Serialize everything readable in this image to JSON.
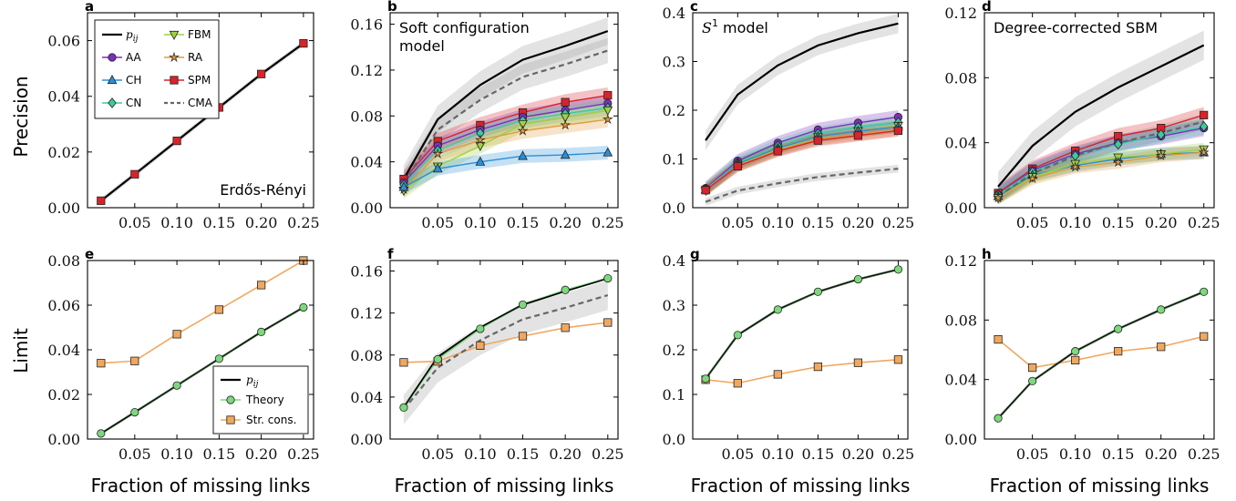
{
  "figure": {
    "ylabel_top": "Precision",
    "ylabel_bottom": "Limit",
    "xlabel": "Fraction of missing links"
  },
  "colors": {
    "pij": "#000000",
    "AA": "#7b2fbf",
    "CH": "#2b8fd6",
    "CN": "#3ec9a0",
    "FBM": "#9fd145",
    "RA": "#e39b3c",
    "SPM": "#d8232a",
    "CMA": "#666666",
    "Theory": "#7dd87d",
    "StrCons": "#f0a860"
  },
  "legend_top": [
    {
      "key": "pij",
      "label": "p",
      "sub": "ij"
    },
    {
      "key": "FBM",
      "label": "FBM"
    },
    {
      "key": "AA",
      "label": "AA"
    },
    {
      "key": "RA",
      "label": "RA"
    },
    {
      "key": "CH",
      "label": "CH"
    },
    {
      "key": "SPM",
      "label": "SPM"
    },
    {
      "key": "CN",
      "label": "CN"
    },
    {
      "key": "CMA",
      "label": "CMA"
    }
  ],
  "legend_bottom": [
    {
      "key": "pij",
      "label": "p",
      "sub": "ij"
    },
    {
      "key": "Theory",
      "label": "Theory"
    },
    {
      "key": "StrCons",
      "label": "Str. cons."
    }
  ],
  "chart_data": [
    {
      "panel": "a",
      "type": "line",
      "annotation": "Erdős-Rényi",
      "x": [
        0.01,
        0.05,
        0.1,
        0.15,
        0.2,
        0.25
      ],
      "xticks": [
        "0.05",
        "0.10",
        "0.15",
        "0.20",
        "0.25"
      ],
      "xticks_shown": [
        "0.05",
        "0.1",
        "0.15",
        "0.2",
        "0.25"
      ],
      "ylim": [
        0,
        0.07
      ],
      "yticks": [
        "0.00",
        "0.02",
        "0.04",
        "0.06"
      ],
      "series": [
        {
          "name": "pij",
          "values": [
            0.0025,
            0.012,
            0.024,
            0.036,
            0.048,
            0.059
          ],
          "band": 0.001
        },
        {
          "name": "SPM",
          "values": [
            0.0025,
            0.012,
            0.024,
            0.036,
            0.048,
            0.059
          ]
        },
        {
          "name": "CMA",
          "values": [
            0.0025,
            0.012,
            0.024,
            0.036,
            0.048,
            0.059
          ]
        }
      ]
    },
    {
      "panel": "b",
      "type": "line",
      "annotation": "Soft configuration model",
      "x": [
        0.01,
        0.05,
        0.1,
        0.15,
        0.2,
        0.25
      ],
      "ylim": [
        0,
        0.17
      ],
      "yticks": [
        "0.00",
        "0.04",
        "0.08",
        "0.12",
        "0.16"
      ],
      "series": [
        {
          "name": "pij",
          "values": [
            0.025,
            0.077,
            0.107,
            0.129,
            0.141,
            0.154
          ],
          "band": 0.012
        },
        {
          "name": "CMA",
          "values": [
            0.022,
            0.068,
            0.094,
            0.114,
            0.125,
            0.137
          ],
          "band": 0.011
        },
        {
          "name": "SPM",
          "values": [
            0.025,
            0.058,
            0.072,
            0.083,
            0.092,
            0.098
          ],
          "band": 0.007
        },
        {
          "name": "AA",
          "values": [
            0.022,
            0.054,
            0.068,
            0.079,
            0.085,
            0.091
          ],
          "band": 0.007
        },
        {
          "name": "CN",
          "values": [
            0.02,
            0.05,
            0.065,
            0.076,
            0.082,
            0.087
          ],
          "band": 0.007
        },
        {
          "name": "FBM",
          "values": [
            0.015,
            0.036,
            0.054,
            0.073,
            0.079,
            0.085
          ],
          "band": 0.007
        },
        {
          "name": "RA",
          "values": [
            0.016,
            0.047,
            0.059,
            0.067,
            0.072,
            0.077
          ],
          "band": 0.007
        },
        {
          "name": "CH",
          "values": [
            0.018,
            0.034,
            0.04,
            0.045,
            0.046,
            0.048
          ],
          "band": 0.006
        }
      ]
    },
    {
      "panel": "c",
      "type": "line",
      "annotation": "model",
      "annotation_math": "S",
      "annotation_sup": "1",
      "x": [
        0.01,
        0.05,
        0.1,
        0.15,
        0.2,
        0.25
      ],
      "ylim": [
        0,
        0.4
      ],
      "yticks": [
        "0.0",
        "0.1",
        "0.2",
        "0.3",
        "0.4"
      ],
      "series": [
        {
          "name": "pij",
          "values": [
            0.138,
            0.232,
            0.292,
            0.333,
            0.358,
            0.378
          ],
          "band": 0.02
        },
        {
          "name": "AA",
          "values": [
            0.04,
            0.096,
            0.133,
            0.16,
            0.174,
            0.186
          ],
          "band": 0.014
        },
        {
          "name": "CN",
          "values": [
            0.038,
            0.092,
            0.127,
            0.152,
            0.165,
            0.175
          ],
          "band": 0.014
        },
        {
          "name": "FBM",
          "values": [
            0.036,
            0.088,
            0.12,
            0.145,
            0.157,
            0.168
          ],
          "band": 0.014
        },
        {
          "name": "CH",
          "values": [
            0.037,
            0.09,
            0.122,
            0.146,
            0.157,
            0.166
          ],
          "band": 0.012
        },
        {
          "name": "RA",
          "values": [
            0.037,
            0.087,
            0.118,
            0.14,
            0.15,
            0.16
          ],
          "band": 0.012
        },
        {
          "name": "SPM",
          "values": [
            0.036,
            0.085,
            0.116,
            0.138,
            0.148,
            0.158
          ],
          "band": 0.012
        },
        {
          "name": "CMA",
          "values": [
            0.012,
            0.035,
            0.05,
            0.063,
            0.072,
            0.08
          ],
          "band": 0.008
        }
      ]
    },
    {
      "panel": "d",
      "type": "line",
      "annotation": "Degree-corrected SBM",
      "x": [
        0.01,
        0.05,
        0.1,
        0.15,
        0.2,
        0.25
      ],
      "ylim": [
        0,
        0.12
      ],
      "yticks": [
        "0.00",
        "0.04",
        "0.08",
        "0.12"
      ],
      "series": [
        {
          "name": "pij",
          "values": [
            0.013,
            0.038,
            0.059,
            0.074,
            0.087,
            0.1
          ],
          "band": 0.009
        },
        {
          "name": "SPM",
          "values": [
            0.009,
            0.024,
            0.035,
            0.044,
            0.049,
            0.057
          ],
          "band": 0.005
        },
        {
          "name": "CMA",
          "values": [
            0.007,
            0.021,
            0.032,
            0.04,
            0.046,
            0.053
          ],
          "band": 0.005
        },
        {
          "name": "AA",
          "values": [
            0.008,
            0.023,
            0.033,
            0.04,
            0.044,
            0.049
          ],
          "band": 0.005
        },
        {
          "name": "CN",
          "values": [
            0.008,
            0.022,
            0.032,
            0.039,
            0.045,
            0.05
          ],
          "band": 0.005
        },
        {
          "name": "CH",
          "values": [
            0.007,
            0.02,
            0.026,
            0.03,
            0.033,
            0.034
          ],
          "band": 0.004
        },
        {
          "name": "FBM",
          "values": [
            0.006,
            0.019,
            0.027,
            0.031,
            0.033,
            0.036
          ],
          "band": 0.004
        },
        {
          "name": "RA",
          "values": [
            0.006,
            0.018,
            0.025,
            0.028,
            0.032,
            0.034
          ],
          "band": 0.004
        }
      ]
    },
    {
      "panel": "e",
      "type": "line",
      "x": [
        0.01,
        0.05,
        0.1,
        0.15,
        0.2,
        0.25
      ],
      "ylim": [
        0,
        0.08
      ],
      "yticks": [
        "0.00",
        "0.02",
        "0.04",
        "0.06",
        "0.08"
      ],
      "series": [
        {
          "name": "pij",
          "values": [
            0.0025,
            0.012,
            0.024,
            0.036,
            0.048,
            0.059
          ]
        },
        {
          "name": "Theory",
          "values": [
            0.0025,
            0.012,
            0.024,
            0.036,
            0.048,
            0.059
          ]
        },
        {
          "name": "StrCons",
          "values": [
            0.034,
            0.035,
            0.047,
            0.058,
            0.069,
            0.08
          ]
        }
      ]
    },
    {
      "panel": "f",
      "type": "line",
      "x": [
        0.01,
        0.05,
        0.1,
        0.15,
        0.2,
        0.25
      ],
      "ylim": [
        0,
        0.17
      ],
      "yticks": [
        "0.00",
        "0.04",
        "0.08",
        "0.12",
        "0.16"
      ],
      "series": [
        {
          "name": "CMA",
          "values": [
            0.028,
            0.068,
            0.094,
            0.114,
            0.125,
            0.137
          ],
          "band": 0.014
        },
        {
          "name": "pij",
          "values": [
            0.03,
            0.078,
            0.106,
            0.128,
            0.141,
            0.153
          ]
        },
        {
          "name": "Theory",
          "values": [
            0.03,
            0.076,
            0.105,
            0.128,
            0.142,
            0.153
          ]
        },
        {
          "name": "StrCons",
          "values": [
            0.073,
            0.074,
            0.089,
            0.098,
            0.106,
            0.111
          ]
        }
      ]
    },
    {
      "panel": "g",
      "type": "line",
      "x": [
        0.01,
        0.05,
        0.1,
        0.15,
        0.2,
        0.25
      ],
      "ylim": [
        0,
        0.4
      ],
      "yticks": [
        "0.0",
        "0.1",
        "0.2",
        "0.3",
        "0.4"
      ],
      "series": [
        {
          "name": "pij",
          "values": [
            0.135,
            0.233,
            0.29,
            0.33,
            0.358,
            0.38
          ]
        },
        {
          "name": "Theory",
          "values": [
            0.135,
            0.233,
            0.29,
            0.33,
            0.358,
            0.38
          ]
        },
        {
          "name": "StrCons",
          "values": [
            0.133,
            0.125,
            0.145,
            0.162,
            0.171,
            0.178
          ]
        }
      ]
    },
    {
      "panel": "h",
      "type": "line",
      "x": [
        0.01,
        0.05,
        0.1,
        0.15,
        0.2,
        0.25
      ],
      "ylim": [
        0,
        0.12
      ],
      "yticks": [
        "0.00",
        "0.04",
        "0.08",
        "0.12"
      ],
      "series": [
        {
          "name": "pij",
          "values": [
            0.014,
            0.039,
            0.059,
            0.074,
            0.087,
            0.099
          ]
        },
        {
          "name": "Theory",
          "values": [
            0.014,
            0.039,
            0.059,
            0.074,
            0.087,
            0.099
          ]
        },
        {
          "name": "StrCons",
          "values": [
            0.067,
            0.048,
            0.053,
            0.059,
            0.062,
            0.069
          ]
        }
      ]
    }
  ],
  "x_tick_values": [
    0.05,
    0.1,
    0.15,
    0.2,
    0.25
  ],
  "x_tick_labels": [
    "0.05",
    "0.10",
    "0.15",
    "0.20",
    "0.25"
  ],
  "x_tick_labels_shown": [
    "0.05",
    "0.10",
    "0.15",
    "0.20",
    "0.25"
  ]
}
